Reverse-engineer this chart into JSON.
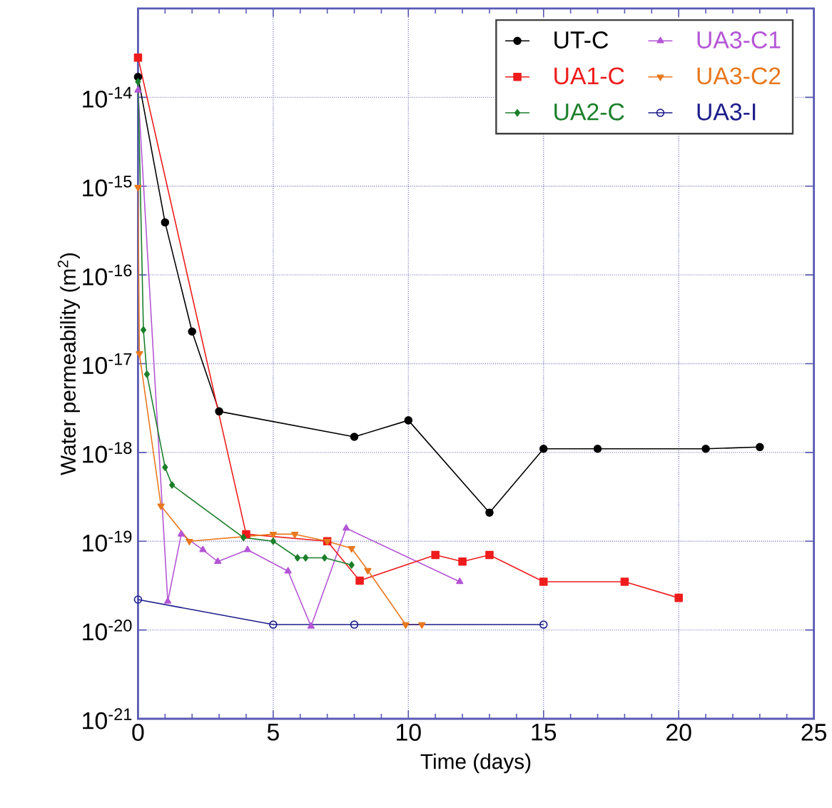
{
  "chart_data": {
    "type": "line",
    "xlabel": "Time (days)",
    "ylabel": "Water permeability (m$^{2}$)",
    "log": "y",
    "grid": true,
    "legend": "top right",
    "line_style": "solid",
    "xlim": [
      0,
      25
    ],
    "xticks": [
      0,
      5,
      10,
      15,
      20,
      25
    ],
    "ylim": [
      1e-21,
      1e-13
    ],
    "yticks": [
      {
        "value": 1e-21,
        "label": "10$^{-21}$"
      },
      {
        "value": 1e-20,
        "label": "10$^{-20}$"
      },
      {
        "value": 1e-19,
        "label": "10$^{-19}$"
      },
      {
        "value": 1e-18,
        "label": "10$^{-18}$"
      },
      {
        "value": 1e-17,
        "label": "10$^{-17}$"
      },
      {
        "value": 1e-16,
        "label": "10$^{-16}$"
      },
      {
        "value": 1e-15,
        "label": "10$^{-15}$"
      },
      {
        "value": 1e-14,
        "label": "10$^{-14}$"
      },
      {
        "value": 1e-13,
        "label": null
      }
    ],
    "series": [
      {
        "name": "UT-C",
        "color": "#000000",
        "marker": "circle",
        "x": [
          0,
          1,
          2,
          3,
          8,
          10,
          13,
          15,
          17,
          21,
          23
        ],
        "values": [
          1.7e-14,
          3.9e-16,
          2.3e-17,
          2.9e-18,
          1.5e-18,
          2.3e-18,
          2.1e-19,
          1.1e-18,
          1.1e-18,
          1.1e-18,
          1.15e-18
        ]
      },
      {
        "name": "UA1-C",
        "color": "#ee1c1c",
        "marker": "square",
        "x": [
          0,
          4,
          7,
          8.2,
          11,
          12,
          13,
          15,
          18,
          20
        ],
        "values": [
          2.8e-14,
          1.2e-19,
          1e-19,
          3.6e-20,
          7e-20,
          5.9e-20,
          7e-20,
          3.5e-20,
          3.5e-20,
          2.3e-20
        ]
      },
      {
        "name": "UA2-C",
        "color": "#1a7f2a",
        "marker": "diamond",
        "x": [
          0,
          0.2,
          0.33,
          1,
          1.26,
          3.9,
          5,
          5.9,
          6.2,
          6.9,
          7.9
        ],
        "values": [
          1.5e-14,
          2.4e-17,
          7.6e-18,
          6.8e-19,
          4.3e-19,
          1.1e-19,
          1e-19,
          6.5e-20,
          6.5e-20,
          6.5e-20,
          5.4e-20
        ]
      },
      {
        "name": "UA3-C1",
        "color": "#b455d6",
        "marker": "triangle",
        "x": [
          0,
          1.1,
          1.6,
          2.4,
          2.95,
          4.05,
          5.55,
          6.4,
          7.7,
          11.9
        ],
        "values": [
          1.2e-14,
          2.1e-20,
          1.2e-19,
          8e-20,
          5.9e-20,
          8e-20,
          4.6e-20,
          1.1e-20,
          1.4e-19,
          3.5e-20
        ]
      },
      {
        "name": "UA3-C2",
        "color": "#e8781e",
        "marker": "triangle-down",
        "x": [
          0,
          0.05,
          0.85,
          1.9,
          5,
          5.8,
          7,
          7.9,
          8.5,
          9.9,
          10.5
        ],
        "values": [
          9.7e-16,
          1.3e-17,
          2.5e-19,
          1e-19,
          1.2e-19,
          1.2e-19,
          1e-19,
          8.3e-20,
          4.7e-20,
          1.15e-20,
          1.15e-20
        ]
      },
      {
        "name": "UA3-I",
        "color": "#1c1c8c",
        "marker": "circle-open",
        "x": [
          0,
          5,
          8,
          15
        ],
        "values": [
          2.2e-20,
          1.15e-20,
          1.15e-20,
          1.15e-20
        ]
      }
    ]
  }
}
